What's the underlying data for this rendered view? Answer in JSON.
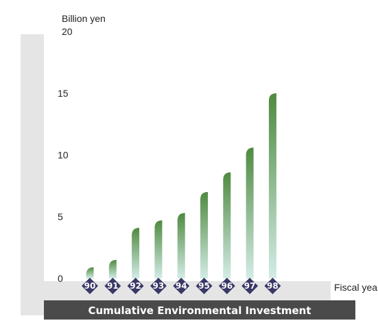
{
  "chart_data": {
    "type": "bar",
    "title": "Cumulative Environmental Investment",
    "ylabel": "Billion yen",
    "xlabel": "Fiscal year",
    "categories": [
      "90",
      "91",
      "92",
      "93",
      "94",
      "95",
      "96",
      "97",
      "98"
    ],
    "values": [
      0.9,
      1.5,
      4.1,
      4.7,
      5.3,
      7.0,
      8.6,
      10.6,
      15.0
    ],
    "ylim": [
      0,
      20
    ],
    "yticks": [
      "0",
      "5",
      "10",
      "15",
      "20"
    ],
    "grid": false,
    "colors": {
      "bar_top": "#4f8a40",
      "bar_bottom": "#d3ece6",
      "marker": "#3a3866",
      "panel": "#e5e5e5",
      "title_band": "#4a4a4a"
    }
  }
}
